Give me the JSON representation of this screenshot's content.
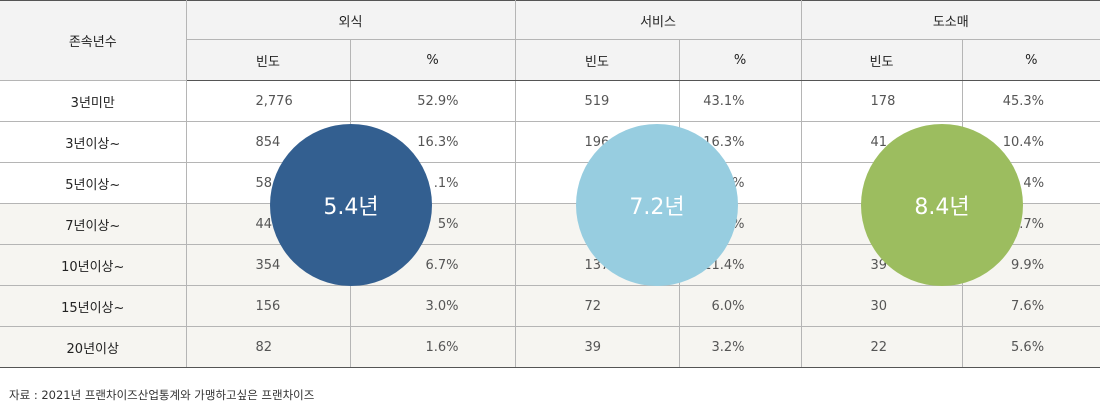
{
  "table": {
    "corner_header": "존속년수",
    "groups": [
      "외식",
      "서비스",
      "도소매"
    ],
    "sub_headers": [
      "빈도",
      "%",
      "빈도",
      "%",
      "빈도",
      "%"
    ],
    "rows": [
      {
        "label": "3년미만",
        "cells": [
          "2,776",
          "52.9%",
          "519",
          "43.1%",
          "178",
          "45.3%"
        ]
      },
      {
        "label": "3년이상~",
        "cells": [
          "854",
          "16.3%",
          "196",
          "16.3%",
          "41",
          "10.4%"
        ]
      },
      {
        "label": "5년이상~",
        "cells": [
          "58",
          ".1%",
          "",
          "%",
          "",
          "4%"
        ]
      },
      {
        "label": "7년이상~",
        "cells": [
          "44",
          "5%",
          "1",
          "%",
          "",
          ".7%"
        ]
      },
      {
        "label": "10년이상~",
        "cells": [
          "354",
          "6.7%",
          "137",
          "11.4%",
          "39",
          "9.9%"
        ]
      },
      {
        "label": "15년이상~",
        "cells": [
          "156",
          "3.0%",
          "72",
          "6.0%",
          "30",
          "7.6%"
        ]
      },
      {
        "label": "20년이상",
        "cells": [
          "82",
          "1.6%",
          "39",
          "3.2%",
          "22",
          "5.6%"
        ]
      }
    ]
  },
  "badges": [
    {
      "text": "5.4년",
      "color": "#335f90"
    },
    {
      "text": "7.2년",
      "color": "#97cde0"
    },
    {
      "text": "8.4년",
      "color": "#9cbd5f"
    }
  ],
  "source": "자료 : 2021년 프랜차이즈산업통계와 가맹하고싶은 프랜차이즈"
}
